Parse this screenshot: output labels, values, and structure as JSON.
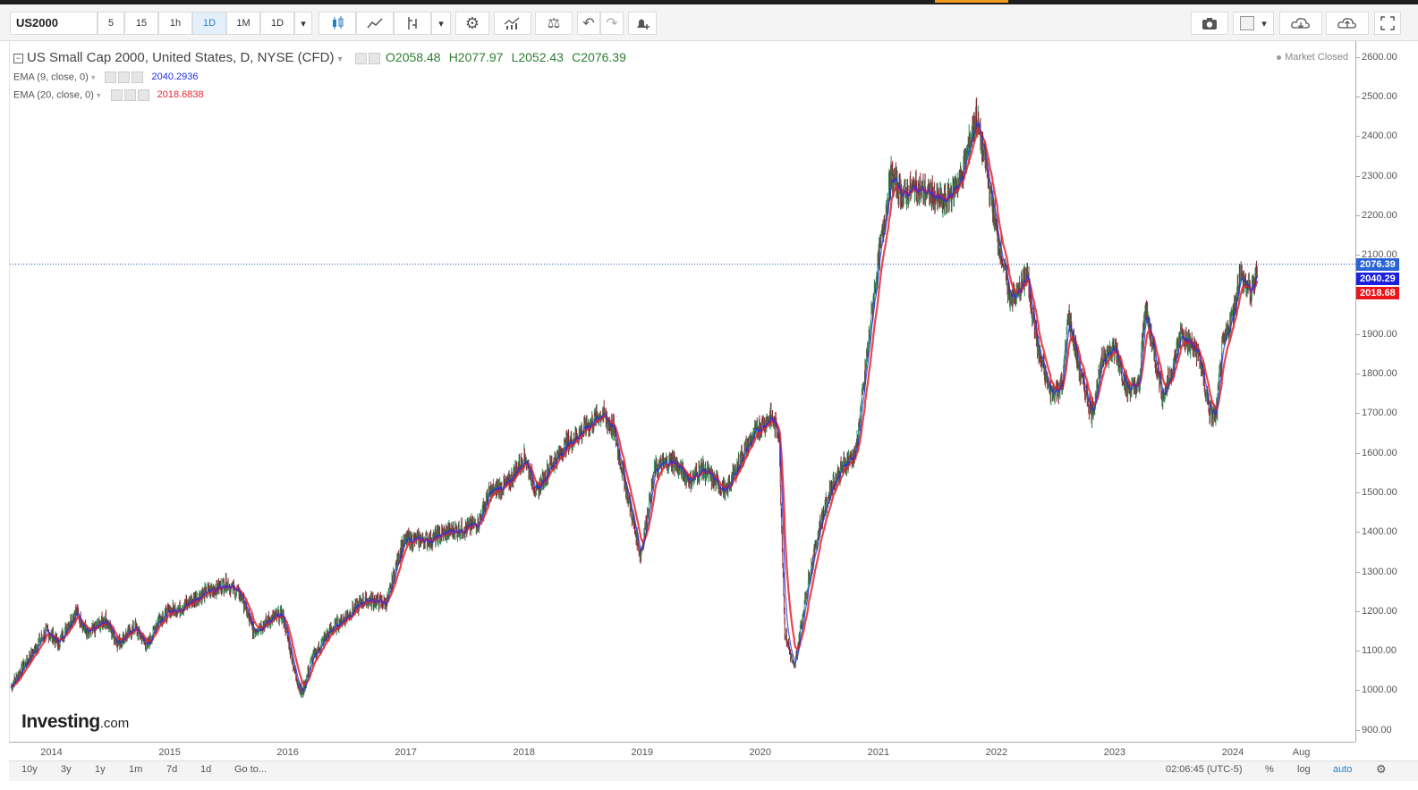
{
  "toolbar": {
    "symbol": "US2000",
    "intervals": [
      "5",
      "15",
      "1h",
      "1D",
      "1M",
      "1D"
    ],
    "active_interval": "1D"
  },
  "legend": {
    "title": "US Small Cap 2000, United States, D, NYSE (CFD)",
    "open": "O2058.48",
    "high": "H2077.97",
    "low": "L2052.43",
    "close": "C2076.39",
    "ema9_label": "EMA (9, close, 0)",
    "ema9_value": "2040.2936",
    "ema20_label": "EMA (20, close, 0)",
    "ema20_value": "2018.6838"
  },
  "status": "Market Closed",
  "price_labels": {
    "close": "2076.39",
    "ema9": "2040.29",
    "ema20": "2018.68"
  },
  "colors": {
    "ema9": "#2230e6",
    "ema20": "#e8252b",
    "up": "#2e8b57",
    "down": "#8b2332"
  },
  "bottom": {
    "ranges": [
      "10y",
      "3y",
      "1y",
      "1m",
      "7d",
      "1d"
    ],
    "goto": "Go to...",
    "time": "02:06:45 (UTC-5)",
    "percent": "%",
    "log": "log",
    "auto": "auto"
  },
  "watermark": {
    "brand": "Investing",
    "suffix": ".com"
  },
  "chart_data": {
    "type": "line",
    "title": "US Small Cap 2000, United States, D, NYSE (CFD)",
    "y_ticks": [
      "900.00",
      "1000.00",
      "1100.00",
      "1200.00",
      "1300.00",
      "1400.00",
      "1500.00",
      "1600.00",
      "1700.00",
      "1800.00",
      "1900.00",
      "2000.00",
      "2100.00",
      "2200.00",
      "2300.00",
      "2400.00",
      "2500.00",
      "2600.00"
    ],
    "x_ticks": [
      "2014",
      "2015",
      "2016",
      "2017",
      "2018",
      "2019",
      "2020",
      "2021",
      "2022",
      "2023",
      "2024",
      "Aug"
    ],
    "ylim": [
      870,
      2640
    ],
    "x_range": [
      2013.64,
      2025.03
    ],
    "last_close": 2076.39,
    "series": [
      {
        "name": "US Small Cap 2000",
        "x": [
          2013.65,
          2013.8,
          2013.95,
          2014.05,
          2014.2,
          2014.3,
          2014.45,
          2014.55,
          2014.7,
          2014.8,
          2014.9,
          2015.0,
          2015.1,
          2015.25,
          2015.4,
          2015.48,
          2015.6,
          2015.7,
          2015.85,
          2015.95,
          2016.05,
          2016.11,
          2016.2,
          2016.35,
          2016.5,
          2016.65,
          2016.83,
          2016.95,
          2017.0,
          2017.2,
          2017.35,
          2017.5,
          2017.6,
          2017.7,
          2017.85,
          2018.0,
          2018.1,
          2018.2,
          2018.35,
          2018.5,
          2018.65,
          2018.75,
          2018.85,
          2018.98,
          2019.1,
          2019.25,
          2019.4,
          2019.5,
          2019.6,
          2019.7,
          2019.85,
          2019.97,
          2020.08,
          2020.15,
          2020.2,
          2020.28,
          2020.33,
          2020.4,
          2020.5,
          2020.6,
          2020.7,
          2020.8,
          2020.88,
          2020.95,
          2021.0,
          2021.1,
          2021.2,
          2021.3,
          2021.45,
          2021.55,
          2021.7,
          2021.82,
          2021.9,
          2022.0,
          2022.1,
          2022.15,
          2022.25,
          2022.35,
          2022.45,
          2022.55,
          2022.6,
          2022.7,
          2022.8,
          2022.9,
          2023.0,
          2023.1,
          2023.2,
          2023.25,
          2023.4,
          2023.5,
          2023.55,
          2023.7,
          2023.8,
          2023.85,
          2023.9,
          2024.0,
          2024.05,
          2024.15,
          2024.2
        ],
        "y": [
          1010,
          1080,
          1150,
          1120,
          1200,
          1140,
          1180,
          1120,
          1160,
          1110,
          1180,
          1200,
          1210,
          1240,
          1260,
          1270,
          1240,
          1150,
          1180,
          1190,
          1050,
          990,
          1080,
          1150,
          1190,
          1230,
          1220,
          1360,
          1380,
          1380,
          1400,
          1410,
          1420,
          1500,
          1520,
          1590,
          1500,
          1560,
          1620,
          1660,
          1700,
          1660,
          1520,
          1340,
          1560,
          1580,
          1530,
          1560,
          1530,
          1500,
          1600,
          1660,
          1690,
          1650,
          1150,
          1050,
          1150,
          1280,
          1420,
          1520,
          1570,
          1600,
          1800,
          1990,
          2100,
          2300,
          2250,
          2270,
          2250,
          2230,
          2300,
          2450,
          2330,
          2150,
          2000,
          1990,
          2050,
          1850,
          1750,
          1770,
          1950,
          1800,
          1700,
          1850,
          1860,
          1760,
          1770,
          1970,
          1740,
          1830,
          1900,
          1850,
          1700,
          1690,
          1860,
          1960,
          2050,
          2000,
          2060
        ]
      }
    ],
    "grid": false
  }
}
